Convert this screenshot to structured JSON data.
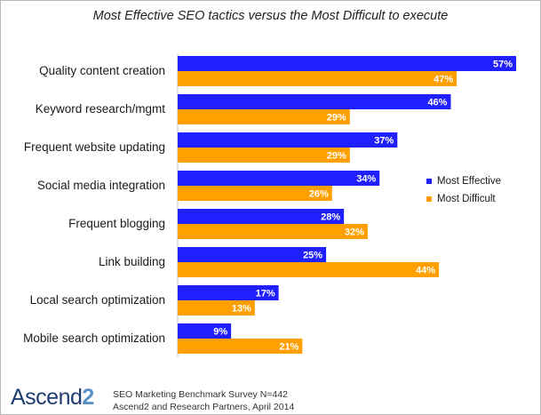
{
  "chart_data": {
    "type": "bar",
    "orientation": "horizontal",
    "title": "Most Effective SEO tactics versus the Most Difficult to execute",
    "categories": [
      "Quality content creation",
      "Keyword research/mgmt",
      "Frequent website updating",
      "Social media integration",
      "Frequent blogging",
      "Link building",
      "Local search optimization",
      "Mobile search optimization"
    ],
    "series": [
      {
        "name": "Most Effective",
        "color": "#1f1fff",
        "values": [
          57,
          46,
          37,
          34,
          28,
          25,
          17,
          9
        ]
      },
      {
        "name": "Most Difficult",
        "color": "#ff9f00",
        "values": [
          47,
          29,
          29,
          26,
          32,
          44,
          13,
          21
        ]
      }
    ],
    "value_suffix": "%",
    "xlim": [
      0,
      57
    ],
    "legend_position": "right",
    "grid": false
  },
  "branding": {
    "logo_main": "Ascend",
    "logo_accent": "2"
  },
  "source": {
    "line1": "SEO Marketing Benchmark Survey N=442",
    "line2": "Ascend2 and Research Partners, April 2014"
  }
}
